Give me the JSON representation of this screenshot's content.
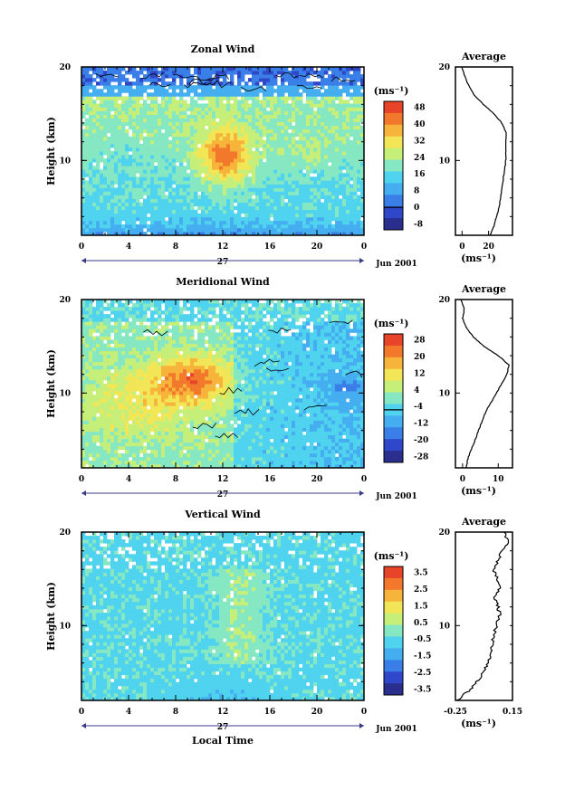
{
  "common": {
    "xticks": [
      "0",
      "4",
      "8",
      "12",
      "16",
      "20",
      "0"
    ],
    "day_label": "27",
    "date_label": "Jun 2001",
    "xlabel": "Local Time",
    "ylabel": "Height (km)",
    "yticks": [
      "20",
      "10"
    ],
    "units_label": "(ms⁻¹)",
    "profile_title": "Average",
    "profile_xlabel": "(ms⁻¹)",
    "colors": [
      "#2a2f8e",
      "#2f48c9",
      "#3a7ee8",
      "#45aef0",
      "#4fd3ee",
      "#86e8c2",
      "#c6ef7a",
      "#f3e656",
      "#f7b43b",
      "#f2792c",
      "#e8442a"
    ]
  },
  "chart_data": [
    {
      "type": "heatmap",
      "title": "Zonal Wind",
      "xlabel": "Local Time",
      "ylabel": "Height (km)",
      "xlim": [
        0,
        24
      ],
      "ylim": [
        2,
        20
      ],
      "colorbar_ticks": [
        "48",
        "40",
        "32",
        "24",
        "16",
        "8",
        "0",
        "-8"
      ],
      "contour_level": 0,
      "profile": {
        "title": "Average",
        "xticks": [
          "0",
          "20"
        ],
        "xlim": [
          -5,
          38
        ],
        "height": [
          2,
          3,
          4,
          5,
          6,
          7,
          8,
          9,
          10,
          11,
          12,
          13,
          14,
          15,
          16,
          17,
          18,
          19,
          20
        ],
        "value": [
          21,
          24,
          26,
          28,
          29,
          30,
          31,
          32,
          33,
          33,
          33,
          33,
          30,
          24,
          16,
          9,
          5,
          2,
          0
        ]
      }
    },
    {
      "type": "heatmap",
      "title": "Meridional Wind",
      "xlabel": "Local Time",
      "ylabel": "Height (km)",
      "xlim": [
        0,
        24
      ],
      "ylim": [
        2,
        20
      ],
      "colorbar_ticks": [
        "28",
        "20",
        "12",
        "4",
        "-4",
        "-12",
        "-20",
        "-28"
      ],
      "contour_level": 0,
      "profile": {
        "title": "Average",
        "xticks": [
          "0",
          "10"
        ],
        "xlim": [
          -2,
          14
        ],
        "height": [
          2,
          3,
          4,
          5,
          6,
          7,
          8,
          9,
          10,
          11,
          12,
          13,
          14,
          15,
          16,
          17,
          18,
          19,
          20
        ],
        "value": [
          1,
          1.5,
          2.5,
          3.5,
          4.5,
          5.5,
          6.5,
          8,
          9.5,
          11,
          12.5,
          13,
          10,
          6,
          3,
          1,
          0,
          0.5,
          -0.5
        ]
      }
    },
    {
      "type": "heatmap",
      "title": "Vertical Wind",
      "xlabel": "Local Time",
      "ylabel": "Height (km)",
      "xlim": [
        0,
        24
      ],
      "ylim": [
        2,
        20
      ],
      "colorbar_ticks": [
        "3.5",
        "2.5",
        "1.5",
        "0.5",
        "-0.5",
        "-1.5",
        "-2.5",
        "-3.5"
      ],
      "contour_level": null,
      "profile": {
        "title": "Average",
        "xticks": [
          "-0.25",
          "0.15"
        ],
        "xlim": [
          -0.25,
          0.15
        ],
        "height": [
          2,
          3,
          4,
          5,
          6,
          7,
          8,
          9,
          10,
          11,
          12,
          13,
          14,
          15,
          16,
          17,
          18,
          19,
          20
        ],
        "value": [
          -0.24,
          -0.16,
          -0.1,
          -0.05,
          -0.02,
          0.0,
          0.01,
          0.02,
          0.04,
          0.06,
          0.05,
          0.03,
          0.06,
          0.04,
          0.02,
          0.05,
          0.08,
          0.12,
          0.09
        ]
      }
    }
  ]
}
